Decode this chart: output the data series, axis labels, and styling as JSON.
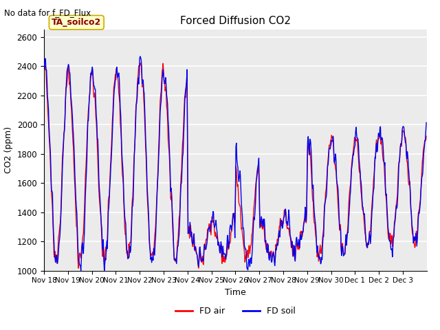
{
  "title": "Forced Diffusion CO2",
  "top_left_text": "No data for f_FD_Flux",
  "annotation_text": "TA_soilco2",
  "annotation_bg": "#ffffcc",
  "annotation_border": "#ccaa00",
  "xlabel": "Time",
  "ylabel": "CO2 (ppm)",
  "ylim": [
    1000,
    2650
  ],
  "yticks": [
    1000,
    1200,
    1400,
    1600,
    1800,
    2000,
    2200,
    2400,
    2600
  ],
  "bg_color": "#ebebeb",
  "fig_color": "#ffffff",
  "line_color_air": "#ff0000",
  "line_color_soil": "#0000ee",
  "line_width": 1.0,
  "legend_air": "FD air",
  "legend_soil": "FD soil",
  "x_tick_labels": [
    "Nov 18",
    "Nov 19",
    "Nov 20",
    "Nov 21",
    "Nov 22",
    "Nov 23",
    "Nov 24",
    "Nov 25",
    "Nov 26",
    "Nov 27",
    "Nov 28",
    "Nov 29",
    "Nov 30",
    "Dec 1",
    "Dec 2",
    "Dec 3"
  ],
  "x_tick_positions": [
    0,
    48,
    96,
    144,
    192,
    240,
    288,
    336,
    384,
    432,
    480,
    528,
    576,
    624,
    672,
    720
  ]
}
